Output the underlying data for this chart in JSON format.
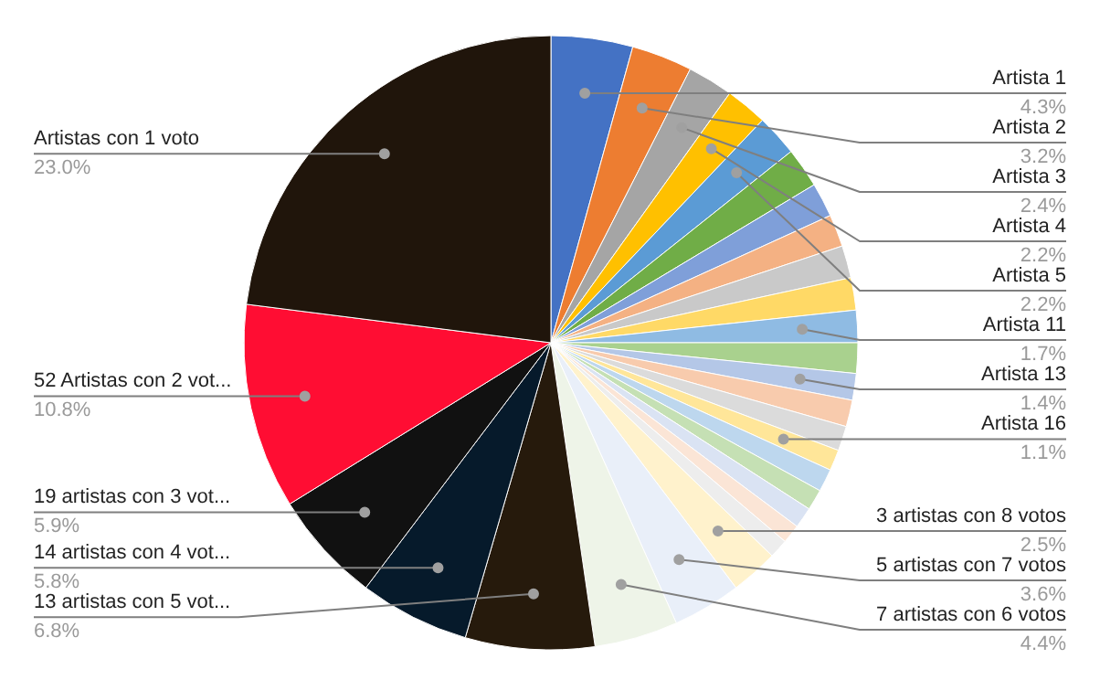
{
  "chart_data": {
    "type": "pie",
    "categories": [
      "Artista 1",
      "Artista 2",
      "Artista 3",
      "Artista 4",
      "Artista 5",
      null,
      null,
      null,
      null,
      null,
      "Artista 11",
      null,
      "Artista 13",
      null,
      null,
      "Artista 16",
      null,
      null,
      null,
      null,
      null,
      "3 artistas con 8 votos",
      "5 artistas con 7 votos",
      "7 artistas con 6 votos",
      "13 artistas con 5 vot...",
      "14 artistas con 4 vot...",
      "19 artistas con 3 vot...",
      "52 Artistas con 2 vot...",
      "Artistas con 1 voto"
    ],
    "values": [
      4.3,
      3.2,
      2.4,
      2.2,
      2.2,
      2.1,
      1.8,
      1.7,
      1.7,
      1.7,
      1.7,
      1.6,
      1.4,
      1.4,
      1.3,
      1.1,
      1.2,
      1.1,
      1.1,
      1.0,
      1.0,
      2.5,
      3.6,
      4.4,
      6.8,
      5.8,
      5.9,
      10.8,
      23.0
    ],
    "value_labels": [
      "4.3%",
      "3.2%",
      "2.4%",
      "2.2%",
      "2.2%",
      null,
      null,
      null,
      null,
      null,
      "1.7%",
      null,
      "1.4%",
      null,
      null,
      "1.1%",
      null,
      null,
      null,
      null,
      null,
      "2.5%",
      "3.6%",
      "4.4%",
      "6.8%",
      "5.8%",
      "5.9%",
      "10.8%",
      "23.0%"
    ],
    "colors": [
      "#4472c4",
      "#ed7d31",
      "#a5a5a5",
      "#ffc000",
      "#5b9bd5",
      "#70ad47",
      "#7f9fd9",
      "#f4b183",
      "#c9c9c9",
      "#ffd966",
      "#8fbbe3",
      "#a9d18e",
      "#b4c7e7",
      "#f8cbad",
      "#dbdbdb",
      "#ffe699",
      "#bdd7ee",
      "#c5e0b4",
      "#dae3f3",
      "#fbe5d6",
      "#ededed",
      "#fff2cc",
      "#e9eff9",
      "#eef4e8",
      "#261a0c",
      "#061a2b",
      "#111111",
      "#ff0d33",
      "#20150b"
    ]
  }
}
